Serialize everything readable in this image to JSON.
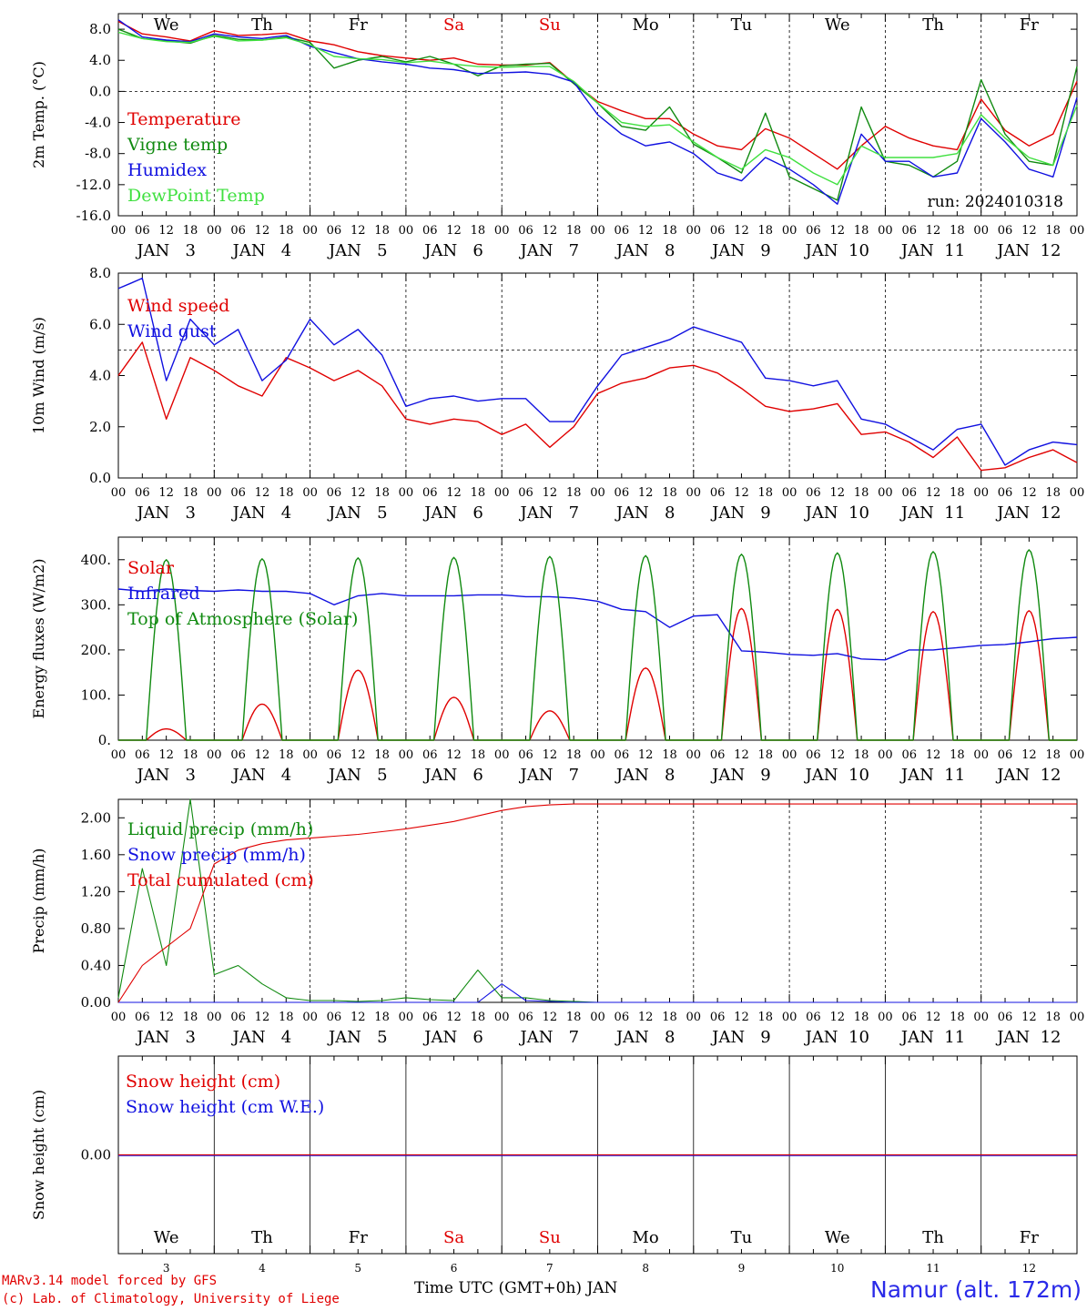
{
  "chart_data": [
    {
      "type": "line",
      "ylabel": "2m Temp. (°C)",
      "ylim": [
        -16,
        10
      ],
      "yticks": [
        "8.0",
        "4.0",
        "0.0",
        "-4.0",
        "-8.0",
        "-12.0",
        "-16.0"
      ],
      "ytick_values": [
        8,
        4,
        0,
        -4,
        -8,
        -12,
        -16
      ],
      "ref_line": 0,
      "annotation": "run: 2024010318",
      "x": [
        0,
        6,
        12,
        18,
        24,
        30,
        36,
        42,
        48,
        54,
        60,
        66,
        72,
        78,
        84,
        90,
        96,
        102,
        108,
        114,
        120,
        126,
        132,
        138,
        144,
        150,
        156,
        162,
        168,
        174,
        180,
        186,
        192,
        198,
        204,
        210,
        216,
        222,
        228,
        234,
        240
      ],
      "series": [
        {
          "name": "Temperature",
          "color": "#e00000",
          "values": [
            9,
            7.4,
            7,
            6.5,
            7.8,
            7.2,
            7.3,
            7.5,
            6.5,
            6,
            5.1,
            4.6,
            4.3,
            4,
            4.3,
            3.5,
            3.4,
            3.4,
            3.7,
            1.1,
            -1.3,
            -2.5,
            -3.5,
            -3.5,
            -5.5,
            -7,
            -7.5,
            -4.8,
            -6,
            -8,
            -10,
            -7,
            -4.5,
            -6,
            -7,
            -7.5,
            -1,
            -5,
            -7,
            -5.5,
            1.3
          ]
        },
        {
          "name": "Vigne temp",
          "color": "#108a10",
          "values": [
            8,
            6.8,
            6.5,
            6.2,
            7.2,
            6.7,
            6.6,
            7,
            6.3,
            3,
            4,
            4.5,
            3.8,
            4.5,
            3.5,
            2,
            3.3,
            3.5,
            3.6,
            1,
            -1.5,
            -4.5,
            -5,
            -2,
            -6.8,
            -8.5,
            -10.5,
            -2.8,
            -11,
            -12.5,
            -14,
            -2,
            -9,
            -9.5,
            -11,
            -9,
            1.5,
            -5.5,
            -9,
            -9.5,
            3.2
          ]
        },
        {
          "name": "Humidex",
          "color": "#1010e0",
          "values": [
            9.2,
            7,
            6.6,
            6.4,
            7.4,
            7,
            6.8,
            7.2,
            5.8,
            5,
            4.2,
            3.8,
            3.5,
            3,
            2.8,
            2.3,
            2.4,
            2.5,
            2.2,
            1.2,
            -3,
            -5.5,
            -7,
            -6.5,
            -8,
            -10.5,
            -11.5,
            -8.5,
            -10,
            -12,
            -14.5,
            -5.5,
            -9,
            -9,
            -11,
            -10.5,
            -3.5,
            -6.5,
            -10,
            -11,
            -0.8
          ]
        },
        {
          "name": "DewPoint Temp",
          "color": "#40e040",
          "values": [
            7.6,
            6.8,
            6.4,
            6.3,
            7.1,
            6.5,
            6.6,
            6.9,
            6,
            4.5,
            4.2,
            4.1,
            3.7,
            3.9,
            3.5,
            3.2,
            3.1,
            3.2,
            3.2,
            1.3,
            -1.5,
            -4,
            -4.5,
            -4.3,
            -6.5,
            -8.5,
            -10,
            -7.5,
            -8.5,
            -10.5,
            -12,
            -7,
            -8.5,
            -8.5,
            -8.5,
            -8,
            -3,
            -6,
            -8.5,
            -9.5,
            -1.8
          ]
        }
      ]
    },
    {
      "type": "line",
      "ylabel": "10m Wind (m/s)",
      "ylim": [
        0,
        8
      ],
      "yticks": [
        "8.0",
        "6.0",
        "4.0",
        "2.0",
        "0.0"
      ],
      "ytick_values": [
        8,
        6,
        4,
        2,
        0
      ],
      "ref_line": 5,
      "x": [
        0,
        6,
        12,
        18,
        24,
        30,
        36,
        42,
        48,
        54,
        60,
        66,
        72,
        78,
        84,
        90,
        96,
        102,
        108,
        114,
        120,
        126,
        132,
        138,
        144,
        150,
        156,
        162,
        168,
        174,
        180,
        186,
        192,
        198,
        204,
        210,
        216,
        222,
        228,
        234,
        240
      ],
      "series": [
        {
          "name": "Wind speed",
          "color": "#e00000",
          "values": [
            4,
            5.3,
            2.3,
            4.7,
            4.2,
            3.6,
            3.2,
            4.7,
            4.3,
            3.8,
            4.2,
            3.6,
            2.3,
            2.1,
            2.3,
            2.2,
            1.7,
            2.1,
            1.2,
            2,
            3.3,
            3.7,
            3.9,
            4.3,
            4.4,
            4.1,
            3.5,
            2.8,
            2.6,
            2.7,
            2.9,
            1.7,
            1.8,
            1.4,
            0.8,
            1.6,
            0.3,
            0.4,
            0.8,
            1.1,
            0.6
          ]
        },
        {
          "name": "Wind gust",
          "color": "#1010e0",
          "values": [
            7.4,
            7.8,
            3.8,
            6.2,
            5.2,
            5.8,
            3.8,
            4.6,
            6.2,
            5.2,
            5.8,
            4.8,
            2.8,
            3.1,
            3.2,
            3,
            3.1,
            3.1,
            2.2,
            2.2,
            3.6,
            4.8,
            5.1,
            5.4,
            5.9,
            5.6,
            5.3,
            3.9,
            3.8,
            3.6,
            3.8,
            2.3,
            2.1,
            1.6,
            1.1,
            1.9,
            2.1,
            0.5,
            1.1,
            1.4,
            1.3
          ]
        }
      ]
    },
    {
      "type": "line",
      "ylabel": "Energy fluxes (W/m2)",
      "ylim": [
        0,
        450
      ],
      "yticks": [
        "400.",
        "300.",
        "200.",
        "100.",
        "0."
      ],
      "ytick_values": [
        400,
        300,
        200,
        100,
        0
      ],
      "x": [
        0,
        6,
        12,
        18,
        24,
        30,
        36,
        42,
        48,
        54,
        60,
        66,
        72,
        78,
        84,
        90,
        96,
        102,
        108,
        114,
        120,
        126,
        132,
        138,
        144,
        150,
        156,
        162,
        168,
        174,
        180,
        186,
        192,
        198,
        204,
        210,
        216,
        222,
        228,
        234,
        240
      ],
      "series": [
        {
          "name": "Solar",
          "color": "#e00000",
          "daily_peak": [
            25,
            80,
            155,
            95,
            65,
            160,
            292,
            290,
            285,
            287
          ]
        },
        {
          "name": "Infrared",
          "color": "#1010e0",
          "values": [
            335,
            330,
            335,
            332,
            330,
            333,
            330,
            330,
            325,
            300,
            320,
            325,
            320,
            320,
            320,
            322,
            322,
            318,
            318,
            315,
            308,
            290,
            285,
            250,
            275,
            278,
            198,
            195,
            190,
            188,
            192,
            180,
            178,
            200,
            200,
            205,
            210,
            212,
            218,
            225,
            228
          ]
        },
        {
          "name": "Top of Atmosphere (Solar)",
          "color": "#108a10",
          "daily_peak": [
            400,
            402,
            404,
            405,
            407,
            409,
            412,
            415,
            418,
            422
          ]
        }
      ]
    },
    {
      "type": "line",
      "ylabel": "Precip (mm/h)",
      "ylim": [
        0,
        2.2
      ],
      "yticks": [
        "2.00",
        "1.60",
        "1.20",
        "0.80",
        "0.40",
        "0.00"
      ],
      "ytick_values": [
        2,
        1.6,
        1.2,
        0.8,
        0.4,
        0
      ],
      "x": [
        0,
        6,
        12,
        18,
        24,
        30,
        36,
        42,
        48,
        54,
        60,
        66,
        72,
        78,
        84,
        90,
        96,
        102,
        108,
        114,
        120,
        126,
        132,
        138,
        144,
        150,
        156,
        162,
        168,
        174,
        180,
        186,
        192,
        198,
        204,
        210,
        216,
        222,
        228,
        234,
        240
      ],
      "series": [
        {
          "name": "Liquid precip (mm/h)",
          "color": "#108a10",
          "values": [
            0.05,
            1.45,
            0.4,
            2.2,
            0.3,
            0.4,
            0.2,
            0.05,
            0.02,
            0.02,
            0.01,
            0.02,
            0.05,
            0.03,
            0.02,
            0.35,
            0.05,
            0.05,
            0.02,
            0.01,
            0,
            0,
            0,
            0,
            0,
            0,
            0,
            0,
            0,
            0,
            0,
            0,
            0,
            0,
            0,
            0,
            0,
            0,
            0,
            0,
            0
          ]
        },
        {
          "name": "Snow precip (mm/h)",
          "color": "#1010e0",
          "values": [
            0,
            0,
            0,
            0,
            0,
            0,
            0,
            0,
            0,
            0,
            0,
            0,
            0,
            0,
            0,
            0,
            0.2,
            0.02,
            0.01,
            0,
            0,
            0,
            0,
            0,
            0,
            0,
            0,
            0,
            0,
            0,
            0,
            0,
            0,
            0,
            0,
            0,
            0,
            0,
            0,
            0,
            0
          ]
        },
        {
          "name": "Total cumulated (cm)",
          "color": "#e00000",
          "values": [
            0,
            0.4,
            0.6,
            0.8,
            1.5,
            1.65,
            1.72,
            1.76,
            1.78,
            1.8,
            1.82,
            1.85,
            1.88,
            1.92,
            1.96,
            2.02,
            2.08,
            2.12,
            2.14,
            2.15,
            2.15,
            2.15,
            2.15,
            2.15,
            2.15,
            2.15,
            2.15,
            2.15,
            2.15,
            2.15,
            2.15,
            2.15,
            2.15,
            2.15,
            2.15,
            2.15,
            2.15,
            2.15,
            2.15,
            2.15,
            2.15
          ]
        }
      ]
    },
    {
      "type": "line",
      "ylabel": "Snow height (cm)",
      "yticks": [
        "0.00"
      ],
      "ytick_values": [
        0
      ],
      "series": [
        {
          "name": "Snow height (cm)",
          "color": "#e00000"
        },
        {
          "name": "Snow height (cm W.E.)",
          "color": "#1010e0"
        }
      ]
    }
  ],
  "time_axis": {
    "hour_ticks": [
      "00",
      "06",
      "12",
      "18"
    ],
    "end_tick": "00",
    "dates": [
      "JAN   3",
      "JAN   4",
      "JAN   5",
      "JAN   6",
      "JAN   7",
      "JAN   8",
      "JAN   9",
      "JAN  10",
      "JAN  11",
      "JAN  12"
    ],
    "weekdays": [
      "We",
      "Th",
      "Fr",
      "Sa",
      "Su",
      "Mo",
      "Tu",
      "We",
      "Th",
      "Fr"
    ],
    "weekday_colors": [
      "#000000",
      "#000000",
      "#000000",
      "#e00000",
      "#e00000",
      "#000000",
      "#000000",
      "#000000",
      "#000000",
      "#000000"
    ],
    "day_numbers": [
      "3",
      "4",
      "5",
      "6",
      "7",
      "8",
      "9",
      "10",
      "11",
      "12"
    ]
  },
  "footer": {
    "credit_line1": "MARv3.14 model forced by GFS",
    "credit_line2": "(c) Lab. of Climatology, University of Liege",
    "xlabel": "Time UTC (GMT+0h) JAN",
    "station": "Namur (alt. 172m)"
  }
}
